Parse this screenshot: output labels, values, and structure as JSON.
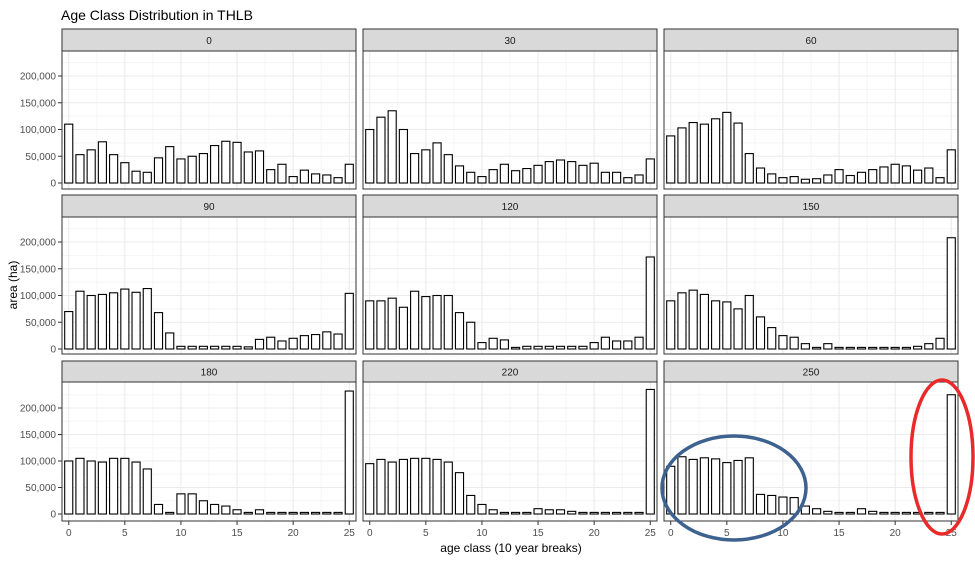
{
  "title": "Age Class Distribution in THLB",
  "chart_data": {
    "type": "bar",
    "title": "Age Class Distribution in THLB",
    "xlabel": "age class (10 year breaks)",
    "ylabel": "area (ha)",
    "x": [
      0,
      1,
      2,
      3,
      4,
      5,
      6,
      7,
      8,
      9,
      10,
      11,
      12,
      13,
      14,
      15,
      16,
      17,
      18,
      19,
      20,
      21,
      22,
      23,
      24,
      25
    ],
    "xlim": [
      -0.6,
      25.6
    ],
    "ylim": [
      0,
      250000
    ],
    "x_ticks": [
      0,
      5,
      10,
      15,
      20,
      25
    ],
    "x_tick_labels": [
      "0",
      "5",
      "10",
      "15",
      "20",
      "25"
    ],
    "y_ticks": [
      0,
      50000,
      100000,
      150000,
      200000
    ],
    "y_tick_labels": [
      "0",
      "50,000",
      "100,000",
      "150,000",
      "200,000"
    ],
    "grid": true,
    "facets": [
      {
        "label": "0",
        "values": [
          110000,
          53000,
          62000,
          77000,
          53000,
          38000,
          22000,
          20000,
          47000,
          68000,
          45000,
          50000,
          55000,
          70000,
          78000,
          76000,
          58000,
          60000,
          25000,
          35000,
          12000,
          24000,
          17000,
          15000,
          10000,
          35000
        ]
      },
      {
        "label": "30",
        "values": [
          100000,
          123000,
          135000,
          100000,
          55000,
          62000,
          75000,
          53000,
          32000,
          20000,
          12000,
          25000,
          35000,
          23000,
          27000,
          33000,
          40000,
          43000,
          40000,
          33000,
          37000,
          20000,
          20000,
          10000,
          15000,
          45000
        ]
      },
      {
        "label": "60",
        "values": [
          88000,
          103000,
          113000,
          110000,
          120000,
          132000,
          112000,
          55000,
          28000,
          17000,
          10000,
          12000,
          7000,
          8000,
          15000,
          25000,
          14000,
          20000,
          25000,
          30000,
          35000,
          32000,
          24000,
          28000,
          10000,
          62000
        ]
      },
      {
        "label": "90",
        "values": [
          70000,
          108000,
          100000,
          102000,
          105000,
          112000,
          106000,
          113000,
          68000,
          30000,
          5000,
          5000,
          5000,
          5000,
          5000,
          5000,
          4000,
          18000,
          22000,
          15000,
          20000,
          25000,
          27000,
          32000,
          28000,
          104000
        ]
      },
      {
        "label": "120",
        "values": [
          90000,
          90000,
          95000,
          78000,
          108000,
          98000,
          100000,
          100000,
          68000,
          50000,
          12000,
          20000,
          17000,
          3000,
          5000,
          5000,
          5000,
          5000,
          5000,
          5000,
          12000,
          22000,
          15000,
          15000,
          22000,
          172000
        ]
      },
      {
        "label": "150",
        "values": [
          90000,
          105000,
          110000,
          102000,
          90000,
          88000,
          75000,
          100000,
          60000,
          40000,
          25000,
          22000,
          10000,
          3000,
          10000,
          3000,
          3000,
          3000,
          3000,
          3000,
          3000,
          3000,
          5000,
          10000,
          20000,
          208000
        ]
      },
      {
        "label": "180",
        "values": [
          100000,
          105000,
          100000,
          98000,
          105000,
          105000,
          98000,
          85000,
          18000,
          3000,
          38000,
          38000,
          25000,
          18000,
          15000,
          8000,
          3000,
          8000,
          3000,
          3000,
          3000,
          3000,
          3000,
          3000,
          3000,
          232000
        ]
      },
      {
        "label": "220",
        "values": [
          95000,
          103000,
          98000,
          103000,
          105000,
          105000,
          103000,
          98000,
          78000,
          35000,
          18000,
          8000,
          3000,
          3000,
          3000,
          10000,
          8000,
          8000,
          5000,
          3000,
          3000,
          3000,
          3000,
          3000,
          3000,
          235000
        ]
      },
      {
        "label": "250",
        "values": [
          90000,
          108000,
          103000,
          106000,
          104000,
          97000,
          101000,
          106000,
          37000,
          35000,
          32000,
          31000,
          15000,
          10000,
          5000,
          3000,
          3000,
          10000,
          5000,
          3000,
          3000,
          3000,
          3000,
          3000,
          3000,
          225000
        ]
      }
    ],
    "annotations": [
      {
        "shape": "ellipse",
        "color": "#3d6290",
        "facet": "250",
        "description": "encircles age classes 0–11"
      },
      {
        "shape": "ellipse",
        "color": "#ea2a2a",
        "facet": "250",
        "description": "encircles age class 25"
      }
    ]
  },
  "colors": {
    "bar_fill": "#ffffff",
    "bar_stroke": "#000000",
    "strip_fill": "#d9d9d9",
    "panel_border": "#333333",
    "grid_major": "#ebebeb",
    "grid_minor": "#f5f5f5",
    "blue_ellipse": "#3d6290",
    "red_ellipse": "#ea2a2a"
  }
}
